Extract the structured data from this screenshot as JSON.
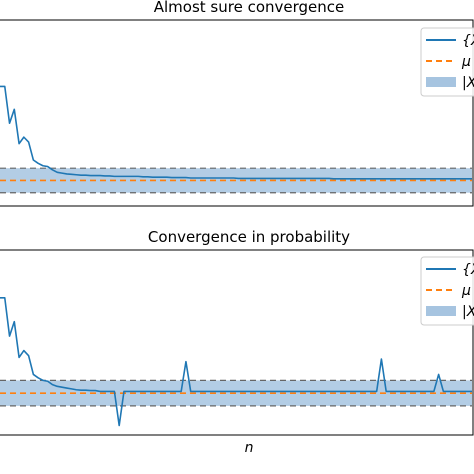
{
  "chart_data": [
    {
      "type": "line",
      "title": "Almost sure convergence",
      "x": [
        0,
        1,
        2,
        3,
        4,
        5,
        6,
        7,
        8,
        9,
        10,
        11,
        12,
        13,
        14,
        15,
        16,
        17,
        18,
        19,
        20,
        21,
        22,
        23,
        24,
        25,
        26,
        27,
        28,
        29,
        30,
        31,
        32,
        33,
        34,
        35,
        36,
        37,
        38,
        39,
        40,
        41,
        42,
        43,
        44,
        45,
        46,
        47,
        48,
        49,
        50,
        51,
        52,
        53,
        54,
        55,
        56,
        57,
        58,
        59,
        60,
        61,
        62,
        63,
        64,
        65,
        66,
        67,
        68,
        69,
        70,
        71,
        72,
        73,
        74,
        75,
        76,
        77,
        78,
        79,
        80,
        81,
        82,
        83,
        84,
        85,
        86,
        87,
        88,
        89,
        90,
        91,
        92,
        93,
        94,
        95,
        96,
        97,
        98,
        99
      ],
      "series": [
        {
          "name": "{X",
          "style": "solid",
          "color": "#1f77b4",
          "values": [
            1.0,
            1.0,
            0.55,
            0.72,
            0.3,
            0.38,
            0.32,
            0.1,
            0.06,
            0.03,
            0.02,
            -0.02,
            -0.05,
            -0.06,
            -0.07,
            -0.075,
            -0.08,
            -0.085,
            -0.085,
            -0.09,
            -0.09,
            -0.09,
            -0.095,
            -0.095,
            -0.1,
            -0.1,
            -0.1,
            -0.1,
            -0.1,
            -0.1,
            -0.105,
            -0.105,
            -0.11,
            -0.11,
            -0.11,
            -0.11,
            -0.115,
            -0.115,
            -0.115,
            -0.115,
            -0.12,
            -0.12,
            -0.12,
            -0.12,
            -0.12,
            -0.12,
            -0.12,
            -0.12,
            -0.12,
            -0.12,
            -0.125,
            -0.125,
            -0.125,
            -0.125,
            -0.125,
            -0.125,
            -0.125,
            -0.125,
            -0.125,
            -0.125,
            -0.125,
            -0.125,
            -0.125,
            -0.125,
            -0.125,
            -0.125,
            -0.125,
            -0.125,
            -0.125,
            -0.125,
            -0.13,
            -0.13,
            -0.13,
            -0.13,
            -0.13,
            -0.13,
            -0.13,
            -0.13,
            -0.13,
            -0.13,
            -0.13,
            -0.13,
            -0.13,
            -0.13,
            -0.13,
            -0.13,
            -0.13,
            -0.13,
            -0.13,
            -0.13,
            -0.13,
            -0.13,
            -0.13,
            -0.13,
            -0.13,
            -0.13,
            -0.13,
            -0.13,
            -0.13,
            -0.13
          ]
        },
        {
          "name": "μ",
          "style": "dashed",
          "color": "#ff7f0e",
          "constant": -0.15
        }
      ],
      "band": {
        "name": "|X",
        "lower": -0.3,
        "upper": 0.0,
        "color": "#a6c4e0"
      },
      "xlabel": "",
      "ylabel": "",
      "xlim": [
        0,
        99
      ],
      "ylim": [
        -0.45,
        1.8
      ],
      "grid": false,
      "legend": "top-right"
    },
    {
      "type": "line",
      "title": "Convergence in probability",
      "x": [
        0,
        1,
        2,
        3,
        4,
        5,
        6,
        7,
        8,
        9,
        10,
        11,
        12,
        13,
        14,
        15,
        16,
        17,
        18,
        19,
        20,
        21,
        22,
        23,
        24,
        25,
        26,
        27,
        28,
        29,
        30,
        31,
        32,
        33,
        34,
        35,
        36,
        37,
        38,
        39,
        40,
        41,
        42,
        43,
        44,
        45,
        46,
        47,
        48,
        49,
        50,
        51,
        52,
        53,
        54,
        55,
        56,
        57,
        58,
        59,
        60,
        61,
        62,
        63,
        64,
        65,
        66,
        67,
        68,
        69,
        70,
        71,
        72,
        73,
        74,
        75,
        76,
        77,
        78,
        79,
        80,
        81,
        82,
        83,
        84,
        85,
        86,
        87,
        88,
        89,
        90,
        91,
        92,
        93,
        94,
        95,
        96,
        97,
        98,
        99
      ],
      "series": [
        {
          "name": "{X",
          "style": "solid",
          "color": "#1f77b4",
          "values": [
            1.0,
            1.0,
            0.55,
            0.72,
            0.3,
            0.38,
            0.32,
            0.1,
            0.06,
            0.03,
            0.02,
            -0.02,
            -0.04,
            -0.05,
            -0.06,
            -0.07,
            -0.08,
            -0.085,
            -0.085,
            -0.09,
            -0.09,
            -0.1,
            -0.1,
            -0.1,
            -0.1,
            -0.5,
            -0.1,
            -0.1,
            -0.1,
            -0.1,
            -0.1,
            -0.1,
            -0.1,
            -0.1,
            -0.1,
            -0.1,
            -0.1,
            -0.1,
            -0.1,
            0.25,
            -0.1,
            -0.1,
            -0.1,
            -0.1,
            -0.1,
            -0.1,
            -0.1,
            -0.1,
            -0.1,
            -0.1,
            -0.1,
            -0.1,
            -0.1,
            -0.1,
            -0.1,
            -0.1,
            -0.1,
            -0.1,
            -0.1,
            -0.1,
            -0.1,
            -0.1,
            -0.1,
            -0.1,
            -0.1,
            -0.1,
            -0.1,
            -0.1,
            -0.1,
            -0.1,
            -0.1,
            -0.1,
            -0.1,
            -0.1,
            -0.1,
            -0.1,
            -0.1,
            -0.1,
            -0.1,
            -0.1,
            0.28,
            -0.1,
            -0.1,
            -0.1,
            -0.1,
            -0.1,
            -0.1,
            -0.1,
            -0.1,
            -0.1,
            -0.1,
            -0.1,
            0.1,
            -0.1,
            -0.1,
            -0.1,
            -0.1,
            -0.1,
            -0.1,
            -0.1
          ]
        },
        {
          "name": "μ",
          "style": "dashed",
          "color": "#ff7f0e",
          "constant": -0.12
        }
      ],
      "band": {
        "name": "|X",
        "lower": -0.27,
        "upper": 0.03,
        "color": "#a6c4e0"
      },
      "xlabel": "n",
      "ylabel": "",
      "xlim": [
        0,
        99
      ],
      "ylim": [
        -0.6,
        1.55
      ],
      "grid": false,
      "legend": "top-right"
    }
  ]
}
